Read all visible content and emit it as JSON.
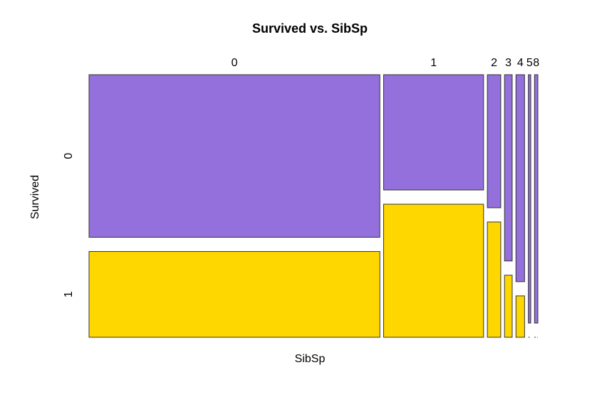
{
  "chart_data": {
    "type": "mosaic",
    "title": "Survived vs. SibSp",
    "x_label": "SibSp",
    "y_label": "Survived",
    "categories": [
      "0",
      "1",
      "2",
      "3",
      "4",
      "5",
      "8"
    ],
    "series": [
      {
        "name": "0",
        "color": "#9370db",
        "values": [
          398,
          97,
          15,
          12,
          15,
          5,
          7
        ]
      },
      {
        "name": "1",
        "color": "#ffd700",
        "values": [
          210,
          112,
          13,
          4,
          3,
          0,
          0
        ]
      }
    ]
  }
}
